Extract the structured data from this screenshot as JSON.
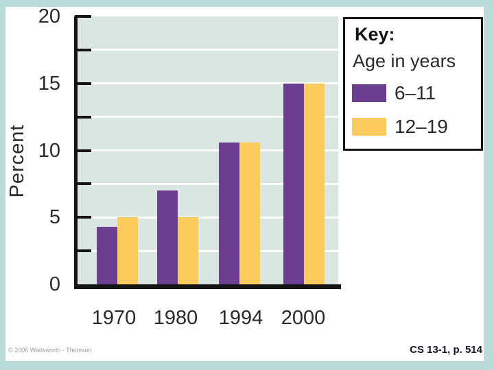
{
  "frame": {
    "border_color": "#b9dcd8",
    "background": "#ffffff"
  },
  "chart_data": {
    "type": "bar",
    "title": "",
    "ylabel": "Percent",
    "xlabel": "",
    "categories": [
      "1970",
      "1980",
      "1994",
      "2000"
    ],
    "series": [
      {
        "name": "6–11",
        "color": "#6b3e92",
        "values": [
          4.3,
          7,
          10.6,
          15
        ]
      },
      {
        "name": "12–19",
        "color": "#fbcc5d",
        "values": [
          5,
          5,
          10.6,
          15
        ]
      }
    ],
    "ylim": [
      0,
      20
    ],
    "y_tick_interval": 5,
    "y_minor_tick_interval": 2.5,
    "y_axis_labels": [
      "0",
      "5",
      "10",
      "15",
      "20"
    ],
    "y_grid_values": [
      2.5,
      5,
      7.5,
      10,
      12.5,
      15,
      17.5
    ],
    "grid": "horizontal",
    "plot_background": "#d9e6e1",
    "legend_position": "right"
  },
  "legend": {
    "title": "Key:",
    "subtitle": "Age in years",
    "items": [
      {
        "label": "6–11",
        "color": "#6b3e92"
      },
      {
        "label": "12–19",
        "color": "#fbcc5d"
      }
    ]
  },
  "footer": {
    "copyright": "© 2006 Wadsworth - Thomson",
    "caption": "CS 13-1, p. 514"
  }
}
